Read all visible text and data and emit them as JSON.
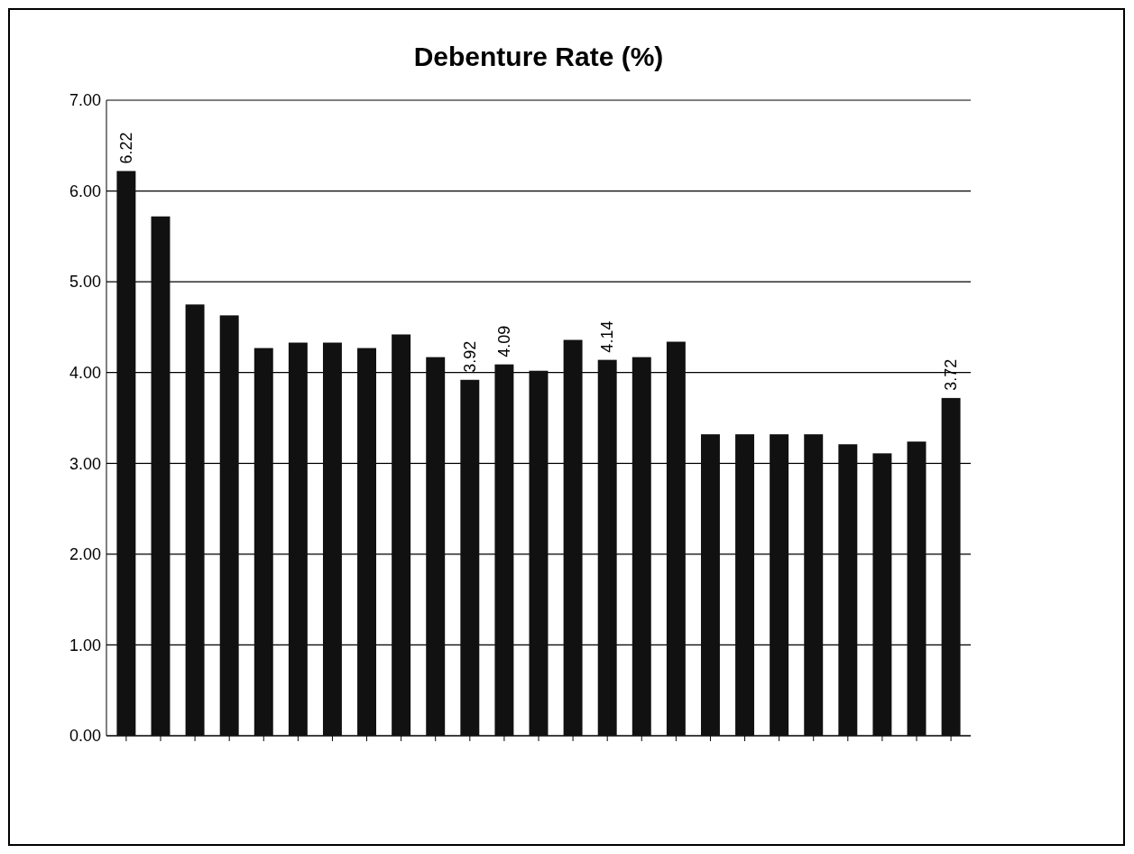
{
  "chart_data": {
    "type": "bar",
    "title": "Debenture Rate (%)",
    "categories": [
      null,
      null,
      null,
      null,
      null,
      null,
      null,
      null,
      null,
      null,
      null,
      null,
      null,
      null,
      null,
      null,
      null,
      null,
      null,
      null,
      null,
      null,
      null,
      null,
      null
    ],
    "values": [
      6.22,
      5.72,
      4.75,
      4.63,
      4.27,
      4.33,
      4.33,
      4.27,
      4.42,
      4.17,
      3.92,
      4.09,
      4.02,
      4.36,
      4.14,
      4.17,
      4.34,
      3.32,
      3.32,
      3.32,
      3.32,
      3.21,
      3.11,
      3.24,
      3.72
    ],
    "value_labels": [
      "6.22",
      null,
      null,
      null,
      null,
      null,
      null,
      null,
      null,
      null,
      "3.92",
      "4.09",
      null,
      null,
      "4.14",
      null,
      null,
      null,
      null,
      null,
      null,
      null,
      null,
      null,
      "3.72"
    ],
    "color": "#111111",
    "ylim": [
      0,
      7
    ],
    "yticks": [
      {
        "value": 0,
        "label": "0.00"
      },
      {
        "value": 1,
        "label": "1.00"
      },
      {
        "value": 2,
        "label": "2.00"
      },
      {
        "value": 3,
        "label": "3.00"
      },
      {
        "value": 4,
        "label": "4.00"
      },
      {
        "value": 5,
        "label": "5.00"
      },
      {
        "value": 6,
        "label": "6.00"
      },
      {
        "value": 7,
        "label": "7.00"
      }
    ],
    "grid": "y"
  }
}
